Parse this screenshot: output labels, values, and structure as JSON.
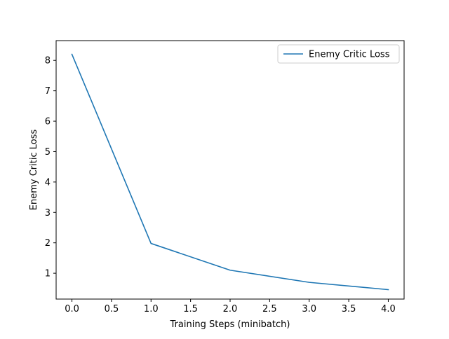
{
  "chart_data": {
    "type": "line",
    "title": "",
    "xlabel": "Training Steps (minibatch)",
    "ylabel": "Enemy Critic Loss",
    "xlim": [
      -0.2,
      4.2
    ],
    "ylim": [
      0.15,
      8.65
    ],
    "x_ticks": [
      0.0,
      0.5,
      1.0,
      1.5,
      2.0,
      2.5,
      3.0,
      3.5,
      4.0
    ],
    "x_tick_labels": [
      "0.0",
      "0.5",
      "1.0",
      "1.5",
      "2.0",
      "2.5",
      "3.0",
      "3.5",
      "4.0"
    ],
    "y_ticks": [
      1,
      2,
      3,
      4,
      5,
      6,
      7,
      8
    ],
    "y_tick_labels": [
      "1",
      "2",
      "3",
      "4",
      "5",
      "6",
      "7",
      "8"
    ],
    "grid": false,
    "legend": {
      "placement": "top-right"
    },
    "series": [
      {
        "name": "Enemy Critic Loss",
        "color": "#1f77b4",
        "x": [
          0,
          1,
          2,
          3,
          4
        ],
        "y": [
          8.2,
          1.98,
          1.1,
          0.7,
          0.46
        ]
      }
    ]
  }
}
